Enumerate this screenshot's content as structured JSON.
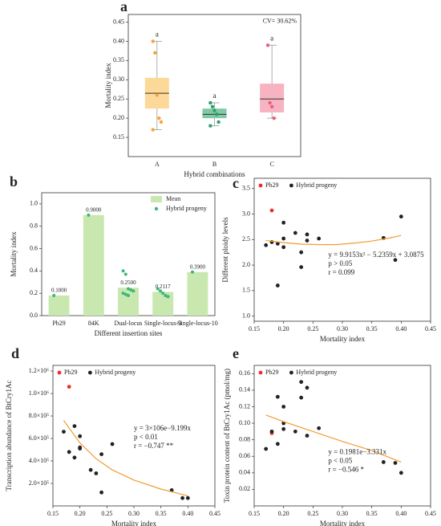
{
  "chart_data": [
    {
      "type": "box",
      "panel": "a",
      "annotation": "CV= 30.62%",
      "xlabel": "Hybrid combinations",
      "ylabel": "Mortality index",
      "categories": [
        "A",
        "B",
        "C"
      ],
      "colors": [
        "#fcd998",
        "#7fc9a5",
        "#f7b3c2"
      ],
      "point_colors": [
        "#f5a63a",
        "#2e9e6a",
        "#e8607a"
      ],
      "boxes": [
        {
          "min": 0.17,
          "q1": 0.225,
          "median": 0.265,
          "q3": 0.305,
          "max": 0.4
        },
        {
          "min": 0.18,
          "q1": 0.2,
          "median": 0.21,
          "q3": 0.225,
          "max": 0.24
        },
        {
          "min": 0.2,
          "q1": 0.215,
          "median": 0.25,
          "q3": 0.29,
          "max": 0.39
        }
      ],
      "points": [
        [
          0.4,
          0.37,
          0.26,
          0.2,
          0.19,
          0.17
        ],
        [
          0.24,
          0.23,
          0.22,
          0.21,
          0.19,
          0.18
        ],
        [
          0.39,
          0.24,
          0.23,
          0.2
        ]
      ],
      "letters": [
        "a",
        "a",
        "a"
      ],
      "ylim": [
        0.1,
        0.47
      ],
      "yticks": [
        0.15,
        {
          "value": 0.2,
          "label": "0.20"
        },
        0.25,
        {
          "value": 0.3,
          "label": "0.30"
        },
        0.35,
        {
          "value": 0.4,
          "label": "0.40"
        },
        0.45
      ]
    },
    {
      "type": "bar",
      "panel": "b",
      "xlabel": "Different insertion sites",
      "ylabel": "Mortality index",
      "categories": [
        "Pb29",
        "84K",
        "Dual-locus",
        "Single-locus-3",
        "Single-locus-10"
      ],
      "series": [
        {
          "name": "Mean",
          "color": "#c9e8b0",
          "values": [
            0.18,
            0.9,
            0.25,
            0.2117,
            0.39
          ],
          "value_labels": [
            "0.1800",
            "0.9000",
            "0.2500",
            "0.2117",
            "0.3900"
          ]
        },
        {
          "name": "Hybrid progeny",
          "color": "#3cb878",
          "values": [
            [
              0.18
            ],
            [
              0.9
            ],
            [
              0.4,
              0.37,
              0.24,
              0.23,
              0.22,
              0.2,
              0.19,
              0.18
            ],
            [
              0.24,
              0.22,
              0.2,
              0.18,
              0.17
            ],
            [
              0.39
            ]
          ]
        }
      ],
      "ylim": [
        0,
        1.1
      ],
      "yticks": [
        {
          "value": 0,
          "label": "0.0"
        },
        0.2,
        0.4,
        0.6,
        0.8,
        {
          "value": 1,
          "label": "1.0"
        }
      ]
    },
    {
      "type": "scatter",
      "panel": "c",
      "xlabel": "Mortality index",
      "ylabel": "Different ploidy levels",
      "series": [
        {
          "name": "Pb29",
          "color": "#e8302a",
          "x": [
            0.18
          ],
          "values": [
            3.07
          ]
        },
        {
          "name": "Hybrid progeny",
          "color": "#222222",
          "x": [
            0.17,
            0.18,
            0.19,
            0.19,
            0.2,
            0.2,
            0.2,
            0.22,
            0.23,
            0.23,
            0.24,
            0.24,
            0.26,
            0.37,
            0.39,
            0.4
          ],
          "values": [
            2.39,
            2.45,
            2.42,
            1.6,
            2.35,
            2.52,
            2.83,
            2.63,
            2.25,
            1.96,
            2.6,
            2.48,
            2.52,
            2.53,
            2.1,
            2.95
          ]
        }
      ],
      "trend": {
        "color": "#f39c30",
        "x": [
          0.17,
          0.2,
          0.23,
          0.26,
          0.29,
          0.32,
          0.35,
          0.38,
          0.4
        ],
        "values": [
          2.48,
          2.44,
          2.41,
          2.4,
          2.4,
          2.43,
          2.47,
          2.53,
          2.58
        ]
      },
      "annotations": [
        "y = 9.9153x² − 5.2359x + 3.0875",
        "p > 0.05",
        "r = 0.099"
      ],
      "xlim": [
        0.15,
        0.45
      ],
      "xticks": [
        0.15,
        {
          "value": 0.2,
          "label": "0.20"
        },
        0.25,
        {
          "value": 0.3,
          "label": "0.30"
        },
        0.35,
        {
          "value": 0.4,
          "label": "0.40"
        },
        0.45
      ],
      "ylim": [
        0.9,
        3.7
      ],
      "yticks": [
        {
          "value": 1,
          "label": "1.0"
        },
        1.5,
        {
          "value": 2,
          "label": "2.0"
        },
        2.5,
        {
          "value": 3,
          "label": "3.0"
        },
        3.5
      ]
    },
    {
      "type": "scatter",
      "panel": "d",
      "xlabel": "Mortality index",
      "ylabel": "Transcription abundance of BtCry1Ac",
      "series": [
        {
          "name": "Pb29",
          "color": "#e8302a",
          "x": [
            0.18
          ],
          "values": [
            1060000
          ]
        },
        {
          "name": "Hybrid progeny",
          "color": "#222222",
          "x": [
            0.17,
            0.18,
            0.19,
            0.19,
            0.2,
            0.2,
            0.2,
            0.22,
            0.23,
            0.24,
            0.24,
            0.26,
            0.37,
            0.39,
            0.4
          ],
          "values": [
            660000,
            480000,
            710000,
            430000,
            620000,
            520000,
            510000,
            320000,
            290000,
            460000,
            120000,
            550000,
            140000,
            70000,
            70000
          ]
        }
      ],
      "trend": {
        "color": "#f39c30",
        "x": [
          0.17,
          0.2,
          0.23,
          0.26,
          0.3,
          0.35,
          0.4
        ],
        "values": [
          760000,
          560000,
          420000,
          320000,
          230000,
          150000,
          90000
        ]
      },
      "annotations": [
        "y = 3×106e−9.199x",
        "p < 0.01",
        "r = −0.747 **"
      ],
      "xlim": [
        0.15,
        0.45
      ],
      "xticks": [
        0.15,
        {
          "value": 0.2,
          "label": "0.20"
        },
        0.25,
        {
          "value": 0.3,
          "label": "0.30"
        },
        0.35,
        {
          "value": 0.4,
          "label": "0.40"
        },
        0.45
      ],
      "ylim": [
        0,
        1250000
      ],
      "yticks": [
        {
          "value": 200000,
          "label": "2.0×10⁵"
        },
        {
          "value": 400000,
          "label": "4.0×10⁵"
        },
        {
          "value": 600000,
          "label": "6.0×10⁵"
        },
        {
          "value": 800000,
          "label": "8.0×10⁵"
        },
        {
          "value": 1000000,
          "label": "1.0×10⁶"
        },
        {
          "value": 1200000,
          "label": "1.2×10⁶"
        }
      ]
    },
    {
      "type": "scatter",
      "panel": "e",
      "xlabel": "Mortality index",
      "ylabel": "Toxin protein content of BtCry1Ac (pmol/mg)",
      "series": [
        {
          "name": "Pb29",
          "color": "#e8302a",
          "x": [
            0.18
          ],
          "values": [
            0.088
          ]
        },
        {
          "name": "Hybrid progeny",
          "color": "#222222",
          "x": [
            0.17,
            0.18,
            0.19,
            0.19,
            0.2,
            0.2,
            0.2,
            0.22,
            0.23,
            0.23,
            0.24,
            0.24,
            0.26,
            0.37,
            0.39,
            0.4
          ],
          "values": [
            0.069,
            0.09,
            0.132,
            0.075,
            0.12,
            0.1,
            0.093,
            0.09,
            0.15,
            0.131,
            0.143,
            0.085,
            0.094,
            0.053,
            0.052,
            0.04
          ]
        }
      ],
      "trend": {
        "color": "#f39c30",
        "x": [
          0.17,
          0.2,
          0.25,
          0.3,
          0.35,
          0.4
        ],
        "values": [
          0.11,
          0.102,
          0.09,
          0.078,
          0.067,
          0.053
        ]
      },
      "annotations": [
        "y = 0.1981e−3.331x",
        "p < 0.05",
        "r = −0.546 *"
      ],
      "xlim": [
        0.15,
        0.45
      ],
      "xticks": [
        0.15,
        {
          "value": 0.2,
          "label": "0.20"
        },
        0.25,
        {
          "value": 0.3,
          "label": "0.30"
        },
        0.35,
        {
          "value": 0.4,
          "label": "0.40"
        },
        0.45
      ],
      "ylim": [
        0,
        0.17
      ],
      "yticks": [
        {
          "value": 0.02,
          "label": "0.02"
        },
        {
          "value": 0.04,
          "label": "0.04"
        },
        {
          "value": 0.06,
          "label": "0.06"
        },
        {
          "value": 0.08,
          "label": "0.08"
        },
        {
          "value": 0.1,
          "label": "0.10"
        },
        {
          "value": 0.12,
          "label": "0.12"
        },
        {
          "value": 0.14,
          "label": "0.14"
        },
        {
          "value": 0.16,
          "label": "0.16"
        }
      ]
    }
  ]
}
